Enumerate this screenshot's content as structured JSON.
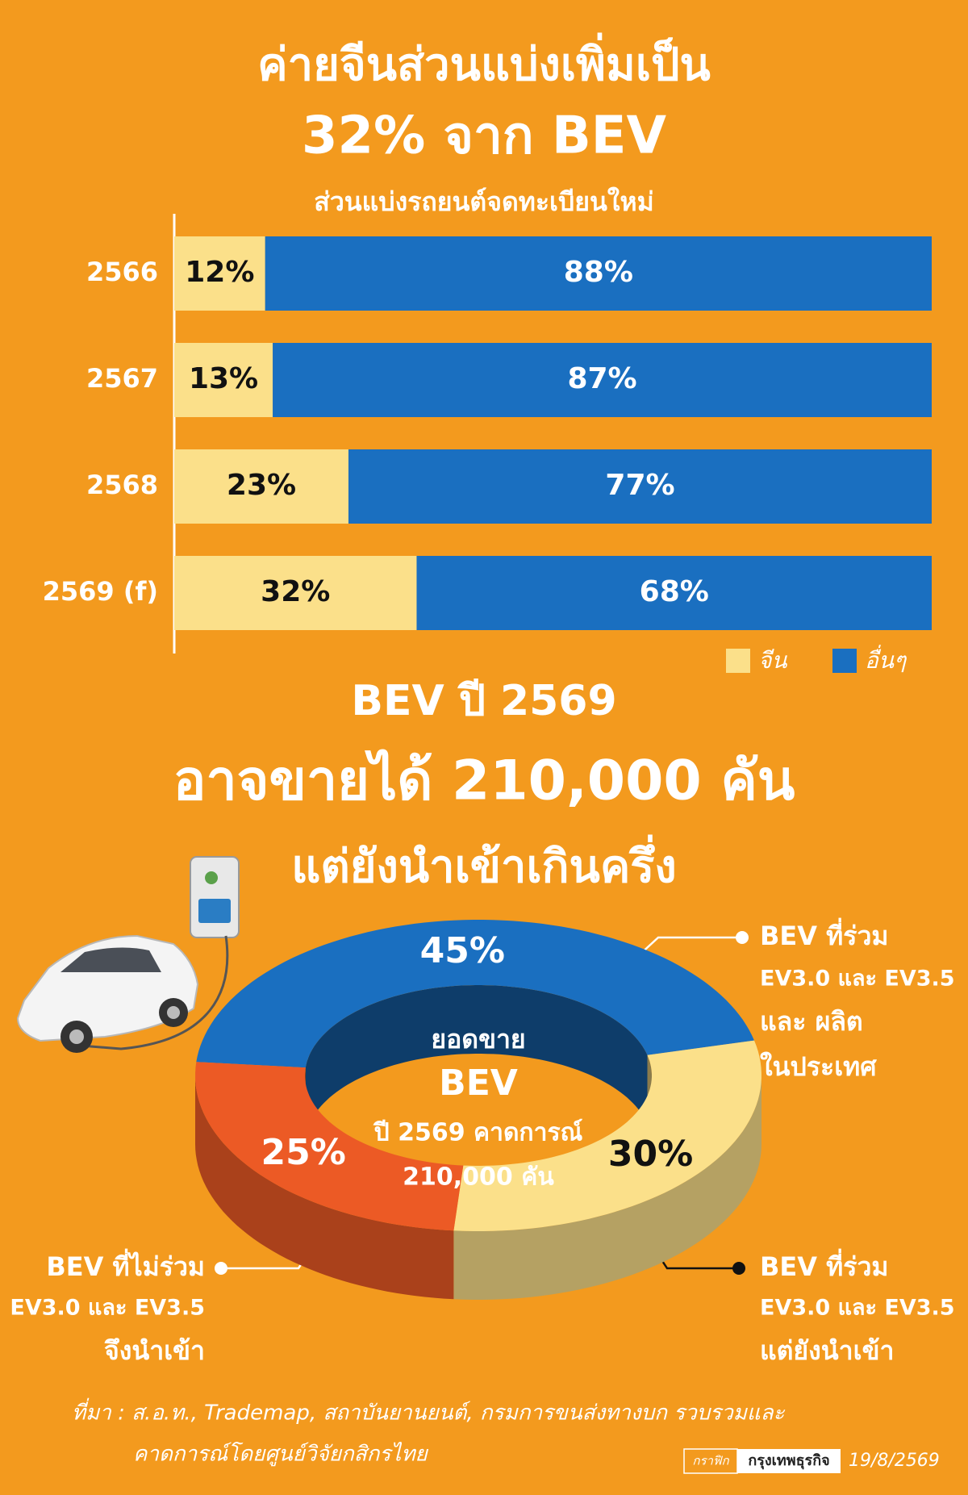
{
  "headline": [
    "ค่ายจีนส่วนแบ่งเพิ่มเป็น",
    "32% จาก BEV"
  ],
  "chart_data": [
    {
      "type": "stacked-bar-horizontal",
      "title": "ส่วนแบ่งรถยนต์จดทะเบียนใหม่",
      "categories": [
        "2566",
        "2567",
        "2568",
        "2569 (f)"
      ],
      "series": [
        {
          "name": "จีน",
          "color": "#fbe08a",
          "values": [
            12,
            13,
            23,
            32
          ],
          "value_labels": [
            "12%",
            "13%",
            "23%",
            "32%"
          ],
          "label_color": "#111111"
        },
        {
          "name": "อื่นๆ",
          "color": "#1a6fc0",
          "values": [
            88,
            87,
            77,
            68
          ],
          "value_labels": [
            "88%",
            "87%",
            "77%",
            "68%"
          ],
          "label_color": "#ffffff"
        }
      ],
      "xlim": [
        0,
        100
      ],
      "legend": "bottom-right"
    },
    {
      "type": "donut",
      "title": [
        "BEV ปี 2569",
        "อาจขายได้ 210,000 คัน",
        "แต่ยังนำเข้าเกินครึ่ง"
      ],
      "center_text": [
        "ยอดขาย",
        "BEV",
        "ปี 2569 คาดการณ์",
        "210,000 คัน"
      ],
      "categories": [
        [
          "BEV ที่ร่วม",
          "EV3.0 และ EV3.5",
          "และ ผลิต",
          "ในประเทศ"
        ],
        [
          "BEV ที่ร่วม",
          "EV3.0 และ EV3.5",
          "แต่ยังนำเข้า"
        ],
        [
          "BEV ที่ไม่ร่วม",
          "EV3.0 และ EV3.5",
          "จึงนำเข้า"
        ]
      ],
      "values": [
        45,
        30,
        25
      ],
      "value_labels": [
        "45%",
        "30%",
        "25%"
      ],
      "colors": [
        "#1a6fc0",
        "#fbe08a",
        "#ec5a25"
      ],
      "label_colors": [
        "#ffffff",
        "#111111",
        "#ffffff"
      ]
    }
  ],
  "source": [
    "ที่มา : ส.อ.ท., Trademap, สถาบันยานยนต์, กรมการขนส่งทางบก รวบรวมและ",
    "คาดการณ์โดยศูนย์วิจัยกสิกรไทย"
  ],
  "credit": [
    "กราฟิก",
    "กรุงเทพธุรกิจ"
  ],
  "date": "19/8/2569"
}
